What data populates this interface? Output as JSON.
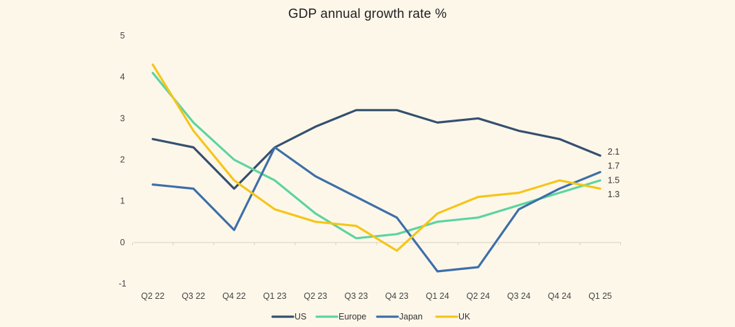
{
  "chart_data": {
    "type": "line",
    "title": "GDP annual growth rate %",
    "xlabel": "",
    "ylabel": "",
    "categories": [
      "Q2 22",
      "Q3 22",
      "Q4 22",
      "Q1 23",
      "Q2 23",
      "Q3 23",
      "Q4 23",
      "Q1 24",
      "Q2 24",
      "Q3 24",
      "Q4 24",
      "Q1 25"
    ],
    "ylim": [
      -1,
      5
    ],
    "yticks": [
      "5",
      "4",
      "3",
      "2",
      "1",
      "0",
      "-1"
    ],
    "grid": false,
    "legend": "bottom",
    "series": [
      {
        "name": "US",
        "color": "#34506f",
        "values": [
          2.5,
          2.3,
          1.3,
          2.3,
          2.8,
          3.2,
          3.2,
          2.9,
          3.0,
          2.7,
          2.5,
          2.1
        ]
      },
      {
        "name": "Europe",
        "color": "#5cd4a0",
        "values": [
          4.1,
          2.9,
          2.0,
          1.5,
          0.7,
          0.1,
          0.2,
          0.5,
          0.6,
          0.9,
          1.2,
          1.5
        ]
      },
      {
        "name": "Japan",
        "color": "#3d6fa8",
        "values": [
          1.4,
          1.3,
          0.3,
          2.3,
          1.6,
          1.1,
          0.6,
          -0.7,
          -0.6,
          0.8,
          1.3,
          1.7
        ]
      },
      {
        "name": "UK",
        "color": "#f5c518",
        "values": [
          4.3,
          2.7,
          1.5,
          0.8,
          0.5,
          0.4,
          -0.2,
          0.7,
          1.1,
          1.2,
          1.5,
          1.3
        ]
      }
    ],
    "end_labels": [
      "2.1",
      "1.7",
      "1.5",
      "1.3"
    ]
  }
}
